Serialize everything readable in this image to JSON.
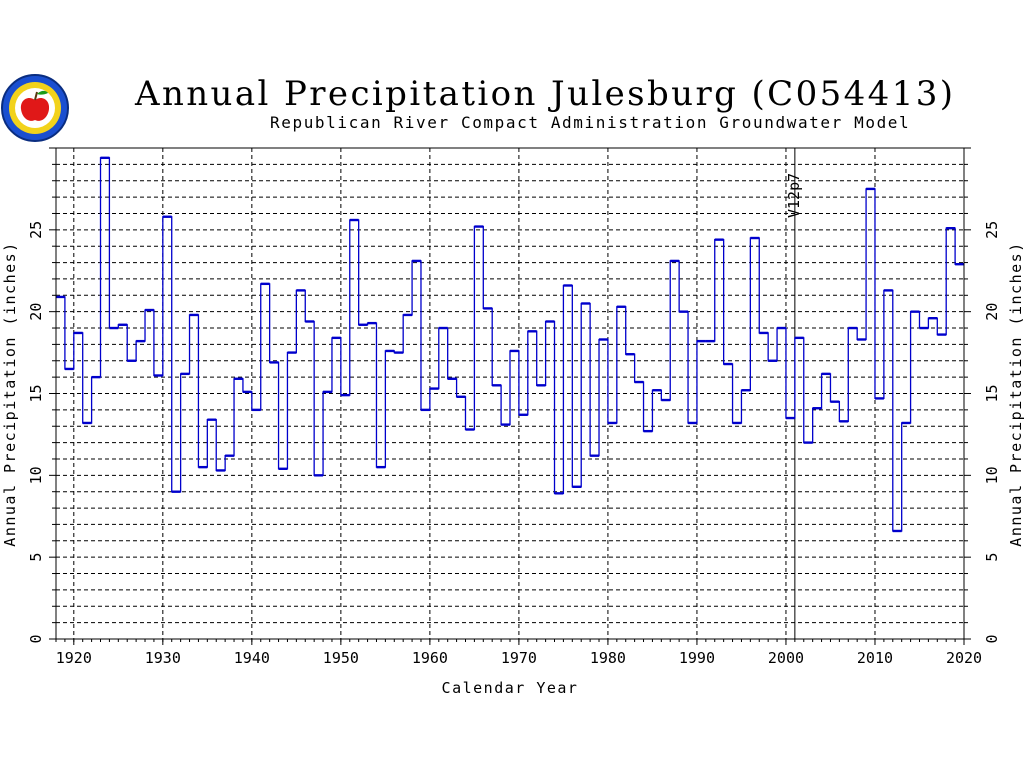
{
  "chart_data": {
    "type": "line",
    "title": "Annual Precipitation Julesburg (C054413)",
    "subtitle": "Republican River Compact Administration Groundwater Model",
    "xlabel": "Calendar Year",
    "ylabel_left": "Annual Precipitation (inches)",
    "ylabel_right": "Annual Precipitation (inches)",
    "xlim": [
      1918,
      2020
    ],
    "ylim": [
      0,
      30
    ],
    "x_ticks": [
      1920,
      1930,
      1940,
      1950,
      1960,
      1970,
      1980,
      1990,
      2000,
      2010,
      2020
    ],
    "y_ticks": [
      0,
      5,
      10,
      15,
      20,
      25
    ],
    "grid": true,
    "marker": {
      "x": 2001,
      "label": "V12p7"
    },
    "line_color": "#0000cc",
    "series": [
      {
        "start_year": 1918,
        "x": [
          1918,
          1919,
          1920,
          1921,
          1922,
          1923,
          1924,
          1925,
          1926,
          1927,
          1928,
          1929,
          1930,
          1931,
          1932,
          1933,
          1934,
          1935,
          1936,
          1937,
          1938,
          1939,
          1940,
          1941,
          1942,
          1943,
          1944,
          1945,
          1946,
          1947,
          1948,
          1949,
          1950,
          1951,
          1952,
          1953,
          1954,
          1955,
          1956,
          1957,
          1958,
          1959,
          1960,
          1961,
          1962,
          1963,
          1964,
          1965,
          1966,
          1967,
          1968,
          1969,
          1970,
          1971,
          1972,
          1973,
          1974,
          1975,
          1976,
          1977,
          1978,
          1979,
          1980,
          1981,
          1982,
          1983,
          1984,
          1985,
          1986,
          1987,
          1988,
          1989,
          1990,
          1991,
          1992,
          1993,
          1994,
          1995,
          1996,
          1997,
          1998,
          1999,
          2000,
          2001,
          2002,
          2003,
          2004,
          2005,
          2006,
          2007,
          2008,
          2009,
          2010,
          2011,
          2012,
          2013,
          2014,
          2015,
          2016,
          2017,
          2018,
          2019
        ],
        "values": [
          20.9,
          16.5,
          18.7,
          13.2,
          16.0,
          29.4,
          19.0,
          19.2,
          17.0,
          18.2,
          20.1,
          16.1,
          25.8,
          9.0,
          16.2,
          19.8,
          10.5,
          13.4,
          10.3,
          11.2,
          15.9,
          15.1,
          14.0,
          21.7,
          16.9,
          10.4,
          17.5,
          21.3,
          19.4,
          10.0,
          15.1,
          18.4,
          14.9,
          25.6,
          19.2,
          19.3,
          10.5,
          17.6,
          17.5,
          19.8,
          23.1,
          14.0,
          15.3,
          19.0,
          15.9,
          14.8,
          12.8,
          25.2,
          20.2,
          15.5,
          13.1,
          17.6,
          13.7,
          18.8,
          15.5,
          19.4,
          8.9,
          21.6,
          9.3,
          20.5,
          11.2,
          18.3,
          13.2,
          20.3,
          17.4,
          15.7,
          12.7,
          15.2,
          14.6,
          23.1,
          20.0,
          13.2,
          18.2,
          18.2,
          24.4,
          16.8,
          13.2,
          15.2,
          24.5,
          18.7,
          17.0,
          19.0,
          13.5,
          18.4,
          12.0,
          14.1,
          16.2,
          14.5,
          13.3,
          19.0,
          18.3,
          27.5,
          14.7,
          21.3,
          6.6,
          13.2,
          20.0,
          19.0,
          19.6,
          18.6,
          25.1,
          22.9
        ]
      }
    ]
  }
}
